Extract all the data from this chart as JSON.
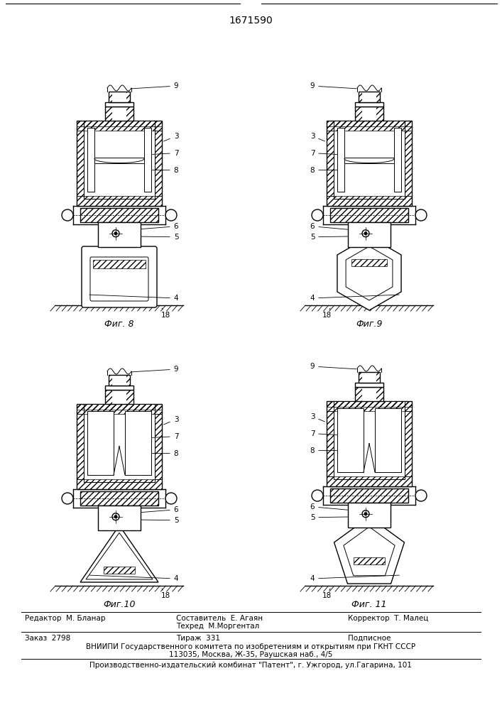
{
  "patent_number": "1671590",
  "fig_labels": [
    "Фиг. 8",
    "Фиг.9",
    "Фиг.10",
    "Фиг. 11"
  ],
  "editor_line": "Редактор  М. Бланар",
  "composer_lines": [
    "Составитель  Е. Агаян",
    "Техред  М.Моргентал"
  ],
  "corrector_line": "Корректор  Т. Малец",
  "order_line": "Заказ  2798",
  "circulation_line": "Тираж  331",
  "subscription_line": "Подписное",
  "vniiipi_line1": "ВНИИПИ Государственного комитета по изобретениям и открытиям при ГКНТ СССР",
  "vniiipi_line2": "113035, Москва, Ж-35, Раушская наб., 4/5",
  "production_line": "Производственно-издательский комбинат \"Патент\", г. Ужгород, ул.Гагарина, 101",
  "bg_color": "#ffffff",
  "lc": "#000000"
}
